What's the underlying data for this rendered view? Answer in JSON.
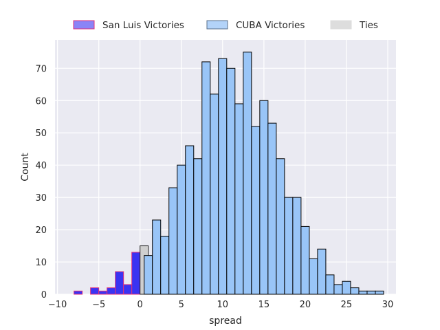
{
  "chart_data": {
    "type": "bar",
    "subtype": "histogram",
    "xlabel": "spread",
    "ylabel": "Count",
    "xlim": [
      -10.3,
      31
    ],
    "ylim": [
      0,
      78.8
    ],
    "x_ticks": [
      -10,
      -5,
      0,
      5,
      10,
      15,
      20,
      25,
      30
    ],
    "y_ticks": [
      0,
      10,
      20,
      30,
      40,
      50,
      60,
      70
    ],
    "bin_width": 1,
    "grid": true,
    "legend_position": "top-center",
    "series": [
      {
        "name": "San Luis Victories",
        "fill": "#3a33f2",
        "edge": "#e0307a",
        "bins": [
          {
            "x": -9,
            "count": 0
          },
          {
            "x": -8,
            "count": 1
          },
          {
            "x": -7,
            "count": 0
          },
          {
            "x": -6,
            "count": 2
          },
          {
            "x": -5,
            "count": 1
          },
          {
            "x": -4,
            "count": 2
          },
          {
            "x": -3,
            "count": 7
          },
          {
            "x": -2,
            "count": 3
          },
          {
            "x": -1,
            "count": 13
          }
        ]
      },
      {
        "name": "Ties",
        "fill": "#cfcfcf",
        "edge": "#222222",
        "bins": [
          {
            "x": 0,
            "count": 15
          }
        ]
      },
      {
        "name": "CUBA Victories",
        "fill": "#99c5f7",
        "edge": "#000000",
        "bins": [
          {
            "x": 0.5,
            "count": 12
          },
          {
            "x": 1.5,
            "count": 23
          },
          {
            "x": 2.5,
            "count": 18
          },
          {
            "x": 3.5,
            "count": 33
          },
          {
            "x": 4.5,
            "count": 40
          },
          {
            "x": 5.5,
            "count": 46
          },
          {
            "x": 6.5,
            "count": 42
          },
          {
            "x": 7.5,
            "count": 72
          },
          {
            "x": 8.5,
            "count": 62
          },
          {
            "x": 9.5,
            "count": 73
          },
          {
            "x": 10.5,
            "count": 70
          },
          {
            "x": 11.5,
            "count": 59
          },
          {
            "x": 12.5,
            "count": 75
          },
          {
            "x": 13.5,
            "count": 52
          },
          {
            "x": 14.5,
            "count": 60
          },
          {
            "x": 15.5,
            "count": 53
          },
          {
            "x": 16.5,
            "count": 42
          },
          {
            "x": 17.5,
            "count": 30
          },
          {
            "x": 18.5,
            "count": 30
          },
          {
            "x": 19.5,
            "count": 21
          },
          {
            "x": 20.5,
            "count": 11
          },
          {
            "x": 21.5,
            "count": 14
          },
          {
            "x": 22.5,
            "count": 6
          },
          {
            "x": 23.5,
            "count": 3
          },
          {
            "x": 24.5,
            "count": 4
          },
          {
            "x": 25.5,
            "count": 2
          },
          {
            "x": 26.5,
            "count": 1
          },
          {
            "x": 27.5,
            "count": 1
          },
          {
            "x": 28.5,
            "count": 1
          }
        ]
      }
    ],
    "legend": [
      {
        "label": "San Luis Victories",
        "fill": "#8a84f7",
        "edge": "#e0307a"
      },
      {
        "label": "CUBA Victories",
        "fill": "#b3d3f9",
        "edge": "#5a6f8a"
      },
      {
        "label": "Ties",
        "fill": "#dddddd",
        "edge": "#dddddd"
      }
    ],
    "colors": {
      "plot_background": "#eaeaf2",
      "grid": "#ffffff",
      "text": "#262626"
    }
  }
}
